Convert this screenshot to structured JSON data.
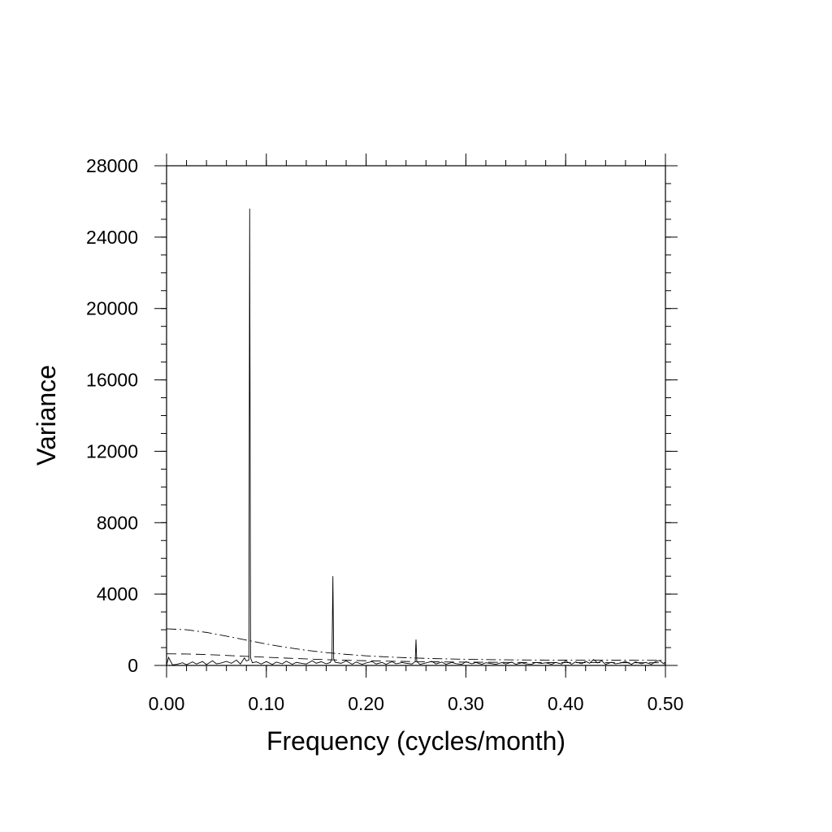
{
  "chart_data": {
    "type": "line",
    "title": "",
    "xlabel": "Frequency (cycles/month)",
    "ylabel": "Variance",
    "xlim": [
      0,
      0.5
    ],
    "ylim": [
      0,
      28000
    ],
    "x_ticks": [
      "0.00",
      "0.10",
      "0.20",
      "0.30",
      "0.40",
      "0.50"
    ],
    "y_ticks": [
      "0",
      "4000",
      "8000",
      "12000",
      "16000",
      "20000",
      "24000",
      "28000"
    ],
    "x_tick_values": [
      0,
      0.1,
      0.2,
      0.3,
      0.4,
      0.5
    ],
    "y_tick_values": [
      0,
      4000,
      8000,
      12000,
      16000,
      20000,
      24000,
      28000
    ],
    "grid": false,
    "legend": "none",
    "series": [
      {
        "style": "solid",
        "x": [
          0.0,
          0.002,
          0.006,
          0.01,
          0.016,
          0.02,
          0.026,
          0.03,
          0.036,
          0.04,
          0.046,
          0.05,
          0.055,
          0.06,
          0.065,
          0.07,
          0.074,
          0.078,
          0.08,
          0.0825,
          0.0833,
          0.0842,
          0.086,
          0.09,
          0.095,
          0.1,
          0.106,
          0.11,
          0.116,
          0.12,
          0.126,
          0.13,
          0.136,
          0.14,
          0.146,
          0.15,
          0.155,
          0.16,
          0.164,
          0.1658,
          0.1667,
          0.1675,
          0.169,
          0.175,
          0.18,
          0.186,
          0.19,
          0.196,
          0.2,
          0.206,
          0.21,
          0.216,
          0.22,
          0.226,
          0.23,
          0.236,
          0.24,
          0.246,
          0.2492,
          0.25,
          0.2508,
          0.254,
          0.26,
          0.266,
          0.27,
          0.276,
          0.28,
          0.286,
          0.29,
          0.296,
          0.3,
          0.306,
          0.31,
          0.316,
          0.32,
          0.326,
          0.33,
          0.336,
          0.34,
          0.346,
          0.35,
          0.356,
          0.36,
          0.366,
          0.37,
          0.376,
          0.38,
          0.386,
          0.39,
          0.396,
          0.4,
          0.406,
          0.41,
          0.416,
          0.42,
          0.424,
          0.428,
          0.432,
          0.436,
          0.44,
          0.446,
          0.45,
          0.456,
          0.46,
          0.466,
          0.47,
          0.476,
          0.48,
          0.486,
          0.49,
          0.494,
          0.498,
          0.5
        ],
        "y": [
          0,
          450,
          30,
          60,
          150,
          40,
          200,
          80,
          220,
          50,
          260,
          90,
          140,
          230,
          120,
          300,
          80,
          420,
          250,
          300,
          25600,
          420,
          150,
          200,
          80,
          220,
          50,
          190,
          90,
          240,
          60,
          170,
          110,
          80,
          260,
          120,
          210,
          90,
          160,
          380,
          5000,
          380,
          180,
          120,
          250,
          70,
          190,
          60,
          140,
          220,
          80,
          170,
          60,
          210,
          90,
          160,
          120,
          80,
          220,
          1450,
          220,
          60,
          140,
          230,
          80,
          190,
          60,
          170,
          100,
          60,
          210,
          90,
          170,
          60,
          150,
          100,
          60,
          160,
          80,
          190,
          60,
          150,
          90,
          60,
          170,
          110,
          150,
          60,
          170,
          80,
          250,
          70,
          200,
          90,
          230,
          120,
          330,
          140,
          260,
          60,
          180,
          90,
          150,
          220,
          60,
          200,
          90,
          170,
          60,
          210,
          280,
          100,
          80
        ]
      },
      {
        "style": "dashed",
        "x": [
          0.0,
          0.02,
          0.04,
          0.06,
          0.08,
          0.1,
          0.12,
          0.14,
          0.16,
          0.18,
          0.2,
          0.22,
          0.24,
          0.26,
          0.28,
          0.3,
          0.32,
          0.34,
          0.36,
          0.38,
          0.4,
          0.42,
          0.44,
          0.46,
          0.48,
          0.5
        ],
        "y": [
          650,
          640,
          610,
          560,
          510,
          460,
          410,
          365,
          325,
          290,
          262,
          240,
          222,
          207,
          195,
          185,
          177,
          170,
          165,
          161,
          158,
          156,
          155,
          154,
          153,
          153
        ]
      },
      {
        "style": "dashdot",
        "x": [
          0.0,
          0.02,
          0.04,
          0.06,
          0.08,
          0.1,
          0.12,
          0.14,
          0.16,
          0.18,
          0.2,
          0.22,
          0.24,
          0.26,
          0.28,
          0.3,
          0.32,
          0.34,
          0.36,
          0.38,
          0.4,
          0.42,
          0.44,
          0.46,
          0.48,
          0.5
        ],
        "y": [
          2050,
          2000,
          1850,
          1640,
          1420,
          1200,
          1010,
          850,
          720,
          620,
          540,
          480,
          432,
          396,
          368,
          345,
          328,
          315,
          306,
          300,
          296,
          293,
          291,
          290,
          289,
          289
        ]
      }
    ]
  }
}
